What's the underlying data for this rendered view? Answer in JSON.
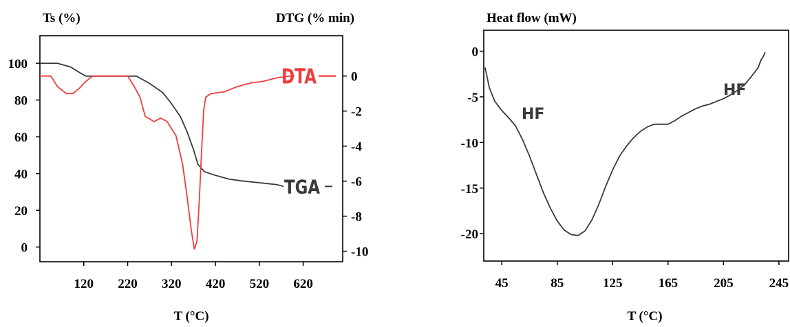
{
  "colors": {
    "tga": "#3a3a3a",
    "dta": "#f03c3c",
    "hf": "#3a3a3a",
    "axis": "#000000"
  },
  "chart_data": [
    {
      "type": "line",
      "ylabel_left": "Ts (%)",
      "ylabel_right": "DTG (% min)",
      "xlabel": "T (°C)",
      "x_ticks": [
        120,
        220,
        320,
        420,
        520,
        620
      ],
      "y_left_ticks": [
        0,
        20,
        40,
        60,
        80,
        100
      ],
      "y_right_ticks": [
        0,
        -2,
        -4,
        -6,
        -8,
        -10
      ],
      "xlim": [
        20,
        710
      ],
      "ylim_left": [
        -8,
        115
      ],
      "ylim_right": [
        -10.6,
        2.3
      ],
      "series": [
        {
          "name": "TGA",
          "axis": "left",
          "points": [
            [
              20,
              100
            ],
            [
              60,
              100
            ],
            [
              90,
              98
            ],
            [
              110,
              95
            ],
            [
              125,
              93
            ],
            [
              180,
              93
            ],
            [
              240,
              93
            ],
            [
              270,
              89
            ],
            [
              300,
              84
            ],
            [
              320,
              78
            ],
            [
              340,
              71
            ],
            [
              355,
              63
            ],
            [
              370,
              53
            ],
            [
              380,
              45
            ],
            [
              395,
              41
            ],
            [
              420,
              39
            ],
            [
              450,
              37
            ],
            [
              480,
              36
            ],
            [
              520,
              35
            ],
            [
              560,
              34
            ],
            [
              575,
              33
            ]
          ]
        },
        {
          "name": "DTA",
          "axis": "right",
          "points": [
            [
              20,
              0
            ],
            [
              45,
              0
            ],
            [
              60,
              -0.6
            ],
            [
              80,
              -1.0
            ],
            [
              95,
              -1.0
            ],
            [
              110,
              -0.7
            ],
            [
              125,
              -0.3
            ],
            [
              140,
              0
            ],
            [
              160,
              0
            ],
            [
              200,
              0
            ],
            [
              220,
              0
            ],
            [
              235,
              -0.6
            ],
            [
              248,
              -1.2
            ],
            [
              260,
              -2.3
            ],
            [
              280,
              -2.6
            ],
            [
              295,
              -2.4
            ],
            [
              310,
              -2.6
            ],
            [
              330,
              -3.4
            ],
            [
              345,
              -5.0
            ],
            [
              355,
              -6.8
            ],
            [
              365,
              -8.8
            ],
            [
              372,
              -9.9
            ],
            [
              378,
              -9.4
            ],
            [
              383,
              -7.2
            ],
            [
              388,
              -4.5
            ],
            [
              393,
              -2.0
            ],
            [
              398,
              -1.2
            ],
            [
              410,
              -1.0
            ],
            [
              440,
              -0.9
            ],
            [
              470,
              -0.6
            ],
            [
              500,
              -0.4
            ],
            [
              530,
              -0.3
            ],
            [
              560,
              -0.1
            ],
            [
              590,
              0
            ],
            [
              600,
              0
            ]
          ]
        }
      ],
      "annotations": [
        {
          "text": "DTA",
          "series": "DTA"
        },
        {
          "text": "TGA",
          "series": "TGA"
        }
      ]
    },
    {
      "type": "line",
      "ylabel": "Heat flow (mW)",
      "xlabel": "T (°C)",
      "x_ticks": [
        45,
        85,
        125,
        165,
        205,
        245
      ],
      "y_ticks": [
        0,
        -5,
        -10,
        -15,
        -20
      ],
      "xlim": [
        32,
        252
      ],
      "ylim": [
        -23,
        2.3
      ],
      "series": [
        {
          "name": "HF",
          "points": [
            [
              33,
              -1.8
            ],
            [
              36,
              -4.0
            ],
            [
              40,
              -5.5
            ],
            [
              45,
              -6.5
            ],
            [
              50,
              -7.3
            ],
            [
              55,
              -8.2
            ],
            [
              60,
              -9.7
            ],
            [
              65,
              -11.5
            ],
            [
              70,
              -13.5
            ],
            [
              75,
              -15.5
            ],
            [
              80,
              -17.2
            ],
            [
              85,
              -18.6
            ],
            [
              90,
              -19.6
            ],
            [
              95,
              -20.1
            ],
            [
              100,
              -20.2
            ],
            [
              105,
              -19.7
            ],
            [
              110,
              -18.5
            ],
            [
              115,
              -16.8
            ],
            [
              120,
              -14.8
            ],
            [
              125,
              -13.0
            ],
            [
              130,
              -11.5
            ],
            [
              135,
              -10.4
            ],
            [
              140,
              -9.5
            ],
            [
              145,
              -8.8
            ],
            [
              150,
              -8.3
            ],
            [
              155,
              -8.0
            ],
            [
              160,
              -8.0
            ],
            [
              165,
              -8.0
            ],
            [
              170,
              -7.6
            ],
            [
              175,
              -7.1
            ],
            [
              180,
              -6.7
            ],
            [
              185,
              -6.3
            ],
            [
              190,
              -6.0
            ],
            [
              195,
              -5.8
            ],
            [
              200,
              -5.5
            ],
            [
              205,
              -5.2
            ],
            [
              210,
              -4.8
            ],
            [
              215,
              -4.3
            ],
            [
              220,
              -3.7
            ],
            [
              225,
              -2.8
            ],
            [
              230,
              -1.8
            ],
            [
              232,
              -1.0
            ],
            [
              234,
              -0.5
            ],
            [
              235,
              -0.1
            ]
          ]
        }
      ],
      "annotations": [
        {
          "text": "HF"
        },
        {
          "text": "HF"
        }
      ]
    }
  ]
}
